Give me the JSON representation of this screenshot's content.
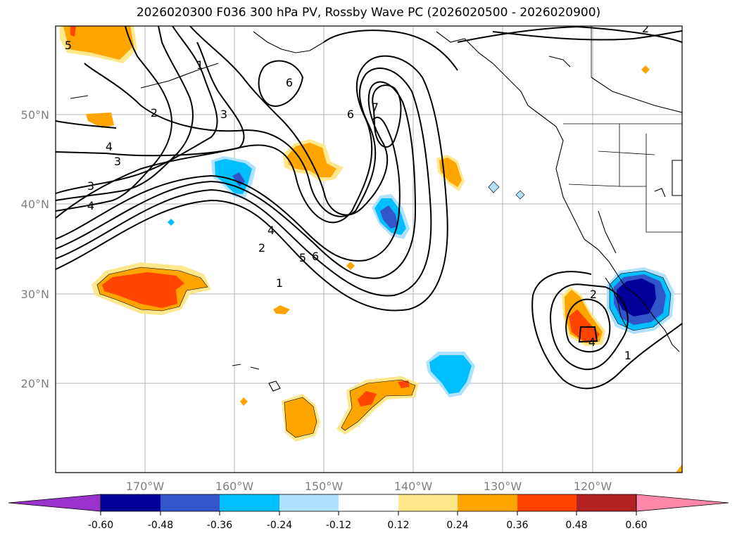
{
  "title": "2026020300 F036 300 hPa PV, Rossby Wave PC (2026020500 - 2026020900)",
  "map": {
    "lon_range": [
      -180,
      -110
    ],
    "lat_range": [
      10,
      60
    ],
    "gridlines": true,
    "lat_labels": [
      "50°N",
      "40°N",
      "30°N",
      "20°N"
    ],
    "lon_labels": [
      "170°W",
      "160°W",
      "150°W",
      "140°W",
      "130°W",
      "120°W"
    ],
    "contour_labels": [
      "5",
      "1",
      "6",
      "7",
      "6",
      "2",
      "3",
      "4",
      "3",
      "3",
      "4",
      "4",
      "2",
      "5",
      "6",
      "1",
      "2",
      "4",
      "1",
      "2"
    ],
    "colors": {
      "neg_060": "#9933cc",
      "neg_048": "#000099",
      "neg_036": "#3355cc",
      "neg_024": "#00bfff",
      "neg_012": "#b0e2ff",
      "white": "#ffffff",
      "pos_012": "#ffe88c",
      "pos_024": "#ffa500",
      "pos_036": "#ff4500",
      "pos_048": "#b22222",
      "pos_060": "#ff88aa"
    }
  },
  "colorbar": {
    "ticks": [
      "-0.60",
      "-0.48",
      "-0.36",
      "-0.24",
      "-0.12",
      "0.12",
      "0.24",
      "0.36",
      "0.48",
      "0.60"
    ]
  }
}
